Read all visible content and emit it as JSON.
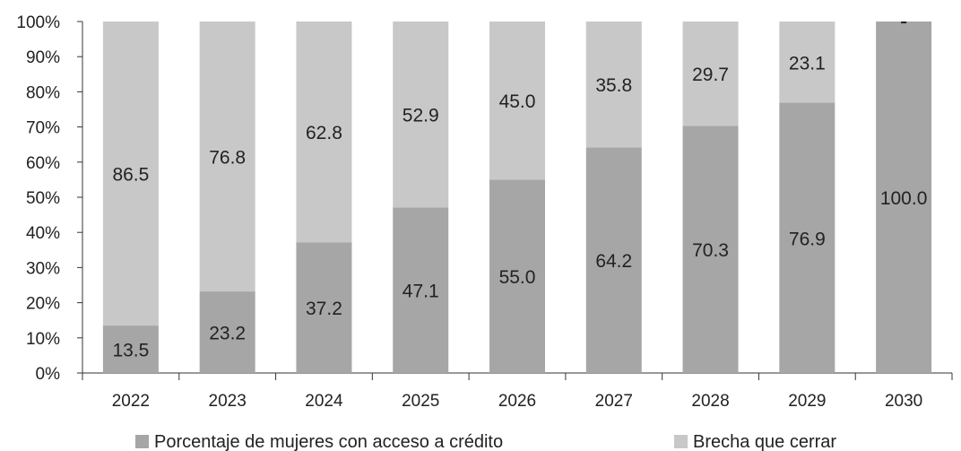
{
  "chart_data": {
    "type": "bar",
    "stacked": true,
    "categories": [
      "2022",
      "2023",
      "2024",
      "2025",
      "2026",
      "2027",
      "2028",
      "2029",
      "2030"
    ],
    "series": [
      {
        "name": "Porcentaje de mujeres con acceso a crédito",
        "values": [
          13.5,
          23.2,
          37.2,
          47.1,
          55.0,
          64.2,
          70.3,
          76.9,
          100.0
        ],
        "labels": [
          "13.5",
          "23.2",
          "37.2",
          "47.1",
          "55.0",
          "64.2",
          "70.3",
          "76.9",
          "100.0"
        ],
        "color": "#a6a6a6"
      },
      {
        "name": "Brecha que cerrar",
        "values": [
          86.5,
          76.8,
          62.8,
          52.9,
          45.0,
          35.8,
          29.7,
          23.1,
          0
        ],
        "labels": [
          "86.5",
          "76.8",
          "62.8",
          "52.9",
          "45.0",
          "35.8",
          "29.7",
          "23.1",
          ""
        ],
        "color": "#c8c8c8"
      }
    ],
    "yticks": [
      "0%",
      "10%",
      "20%",
      "30%",
      "40%",
      "50%",
      "60%",
      "70%",
      "80%",
      "90%",
      "100%"
    ],
    "ylim": [
      0,
      100
    ],
    "grid": false,
    "legend": "bottom"
  }
}
